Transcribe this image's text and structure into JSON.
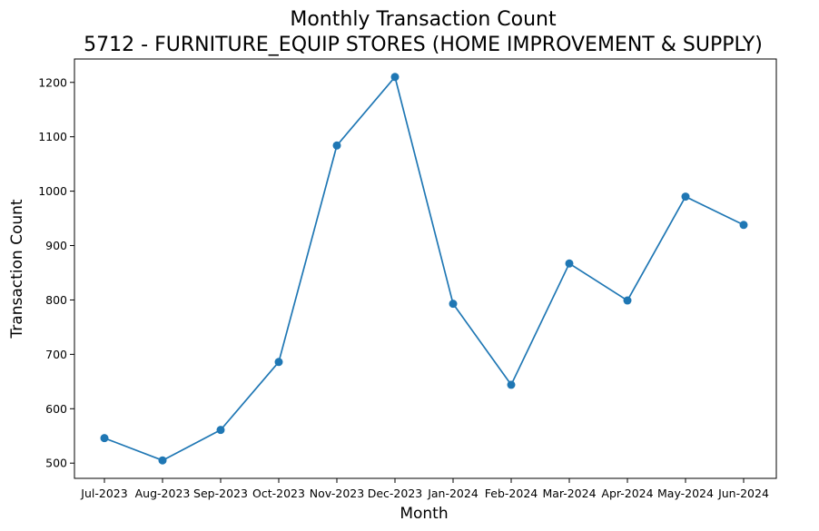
{
  "chart_data": {
    "type": "line",
    "title": "Monthly Transaction Count",
    "subtitle": "5712 - FURNITURE_EQUIP STORES (HOME IMPROVEMENT & SUPPLY)",
    "xlabel": "Month",
    "ylabel": "Transaction Count",
    "categories": [
      "Jul-2023",
      "Aug-2023",
      "Sep-2023",
      "Oct-2023",
      "Nov-2023",
      "Dec-2023",
      "Jan-2024",
      "Feb-2024",
      "Mar-2024",
      "Apr-2024",
      "May-2024",
      "Jun-2024"
    ],
    "series": [
      {
        "values": [
          546,
          505,
          561,
          686,
          1084,
          1210,
          793,
          644,
          867,
          799,
          990,
          938
        ],
        "color": "#1f77b4",
        "marker": "circle"
      }
    ],
    "ylim": [
      472,
      1243
    ],
    "yticks": [
      500,
      600,
      700,
      800,
      900,
      1000,
      1100,
      1200
    ],
    "grid": false
  }
}
